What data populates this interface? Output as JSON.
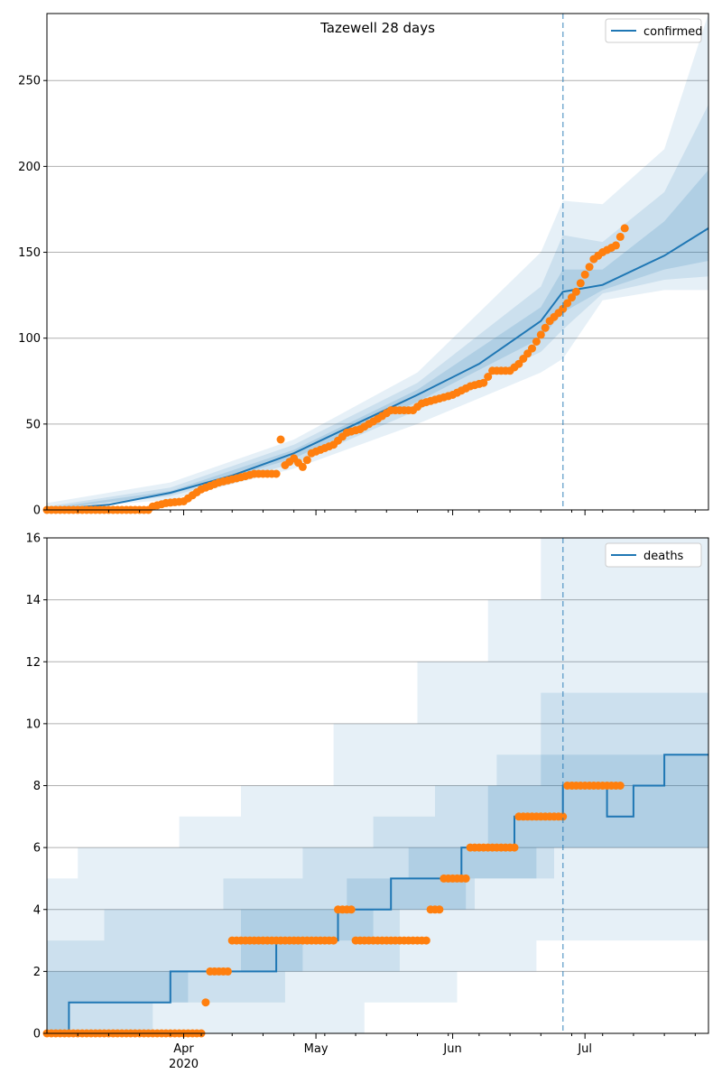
{
  "chart_data": [
    {
      "type": "line",
      "title": "Tazewell 28 days",
      "xlabel": "",
      "ylabel": "",
      "ylim": [
        0,
        289
      ],
      "yticks": [
        0,
        50,
        100,
        150,
        200,
        250
      ],
      "x_axis": {
        "type": "date",
        "start": "2020-03-01",
        "end": "2020-07-29",
        "major_ticks": [
          {
            "date": "2020-04-01",
            "label": "Apr",
            "sublabel": "2020"
          },
          {
            "date": "2020-05-01",
            "label": "May",
            "sublabel": ""
          },
          {
            "date": "2020-06-01",
            "label": "Jun",
            "sublabel": ""
          },
          {
            "date": "2020-07-01",
            "label": "Jul",
            "sublabel": ""
          }
        ]
      },
      "grid": "horizontal",
      "forecast_start": "2020-06-26",
      "legend": {
        "position": "top-right",
        "entries": [
          "confirmed"
        ]
      },
      "series": [
        {
          "name": "confirmed",
          "kind": "model-median",
          "color": "#1f77b4",
          "points": [
            [
              "2020-03-01",
              0
            ],
            [
              "2020-03-15",
              3
            ],
            [
              "2020-03-29",
              10
            ],
            [
              "2020-04-12",
              20
            ],
            [
              "2020-04-26",
              33
            ],
            [
              "2020-05-10",
              50
            ],
            [
              "2020-05-24",
              67
            ],
            [
              "2020-06-07",
              85
            ],
            [
              "2020-06-21",
              110
            ],
            [
              "2020-06-26",
              127
            ],
            [
              "2020-07-05",
              131
            ],
            [
              "2020-07-19",
              148
            ],
            [
              "2020-07-29",
              164
            ]
          ]
        },
        {
          "name": "",
          "kind": "observed",
          "color": "#ff7f0e",
          "points": [
            [
              "2020-03-01",
              0
            ],
            [
              "2020-03-24",
              0
            ],
            [
              "2020-03-25",
              2
            ],
            [
              "2020-03-28",
              4
            ],
            [
              "2020-04-01",
              5
            ],
            [
              "2020-04-05",
              12
            ],
            [
              "2020-04-09",
              16
            ],
            [
              "2020-04-14",
              19
            ],
            [
              "2020-04-17",
              21
            ],
            [
              "2020-04-22",
              21
            ],
            [
              "2020-04-23",
              41
            ],
            [
              "2020-04-24",
              26
            ],
            [
              "2020-04-26",
              30
            ],
            [
              "2020-04-28",
              25
            ],
            [
              "2020-04-30",
              33
            ],
            [
              "2020-05-05",
              38
            ],
            [
              "2020-05-08",
              45
            ],
            [
              "2020-05-11",
              47
            ],
            [
              "2020-05-15",
              53
            ],
            [
              "2020-05-18",
              58
            ],
            [
              "2020-05-23",
              58
            ],
            [
              "2020-05-25",
              62
            ],
            [
              "2020-06-01",
              67
            ],
            [
              "2020-06-05",
              72
            ],
            [
              "2020-06-08",
              74
            ],
            [
              "2020-06-10",
              81
            ],
            [
              "2020-06-14",
              81
            ],
            [
              "2020-06-16",
              85
            ],
            [
              "2020-06-19",
              94
            ],
            [
              "2020-06-21",
              102
            ],
            [
              "2020-06-23",
              110
            ],
            [
              "2020-06-26",
              117
            ],
            [
              "2020-06-29",
              127
            ],
            [
              "2020-07-01",
              137
            ],
            [
              "2020-07-03",
              146
            ],
            [
              "2020-07-05",
              150
            ],
            [
              "2020-07-08",
              154
            ],
            [
              "2020-07-10",
              164
            ]
          ]
        }
      ],
      "bands": [
        {
          "level": "outer",
          "upper": [
            [
              "2020-03-01",
              4
            ],
            [
              "2020-03-29",
              16
            ],
            [
              "2020-04-26",
              41
            ],
            [
              "2020-05-24",
              80
            ],
            [
              "2020-06-21",
              150
            ],
            [
              "2020-06-26",
              180
            ],
            [
              "2020-07-05",
              178
            ],
            [
              "2020-07-19",
              210
            ],
            [
              "2020-07-29",
              289
            ]
          ],
          "lower": [
            [
              "2020-03-01",
              0
            ],
            [
              "2020-03-29",
              6
            ],
            [
              "2020-04-26",
              24
            ],
            [
              "2020-05-24",
              50
            ],
            [
              "2020-06-21",
              80
            ],
            [
              "2020-06-26",
              88
            ],
            [
              "2020-07-05",
              122
            ],
            [
              "2020-07-19",
              128
            ],
            [
              "2020-07-29",
              128
            ]
          ]
        },
        {
          "level": "middle",
          "upper": [
            [
              "2020-03-01",
              2
            ],
            [
              "2020-03-29",
              13
            ],
            [
              "2020-04-26",
              38
            ],
            [
              "2020-05-24",
              74
            ],
            [
              "2020-06-21",
              130
            ],
            [
              "2020-06-26",
              160
            ],
            [
              "2020-07-05",
              156
            ],
            [
              "2020-07-19",
              185
            ],
            [
              "2020-07-29",
              236
            ]
          ],
          "lower": [
            [
              "2020-03-01",
              0
            ],
            [
              "2020-03-29",
              8
            ],
            [
              "2020-04-26",
              27
            ],
            [
              "2020-05-24",
              58
            ],
            [
              "2020-06-21",
              92
            ],
            [
              "2020-06-26",
              105
            ],
            [
              "2020-07-05",
              126
            ],
            [
              "2020-07-19",
              134
            ],
            [
              "2020-07-29",
              136
            ]
          ]
        },
        {
          "level": "inner",
          "upper": [
            [
              "2020-03-01",
              1
            ],
            [
              "2020-03-29",
              11
            ],
            [
              "2020-04-26",
              35
            ],
            [
              "2020-05-24",
              70
            ],
            [
              "2020-06-21",
              118
            ],
            [
              "2020-06-26",
              140
            ],
            [
              "2020-07-05",
              140
            ],
            [
              "2020-07-19",
              168
            ],
            [
              "2020-07-29",
              198
            ]
          ],
          "lower": [
            [
              "2020-03-01",
              0
            ],
            [
              "2020-03-29",
              9
            ],
            [
              "2020-04-26",
              30
            ],
            [
              "2020-05-24",
              63
            ],
            [
              "2020-06-21",
              100
            ],
            [
              "2020-06-26",
              115
            ],
            [
              "2020-07-05",
              128
            ],
            [
              "2020-07-19",
              140
            ],
            [
              "2020-07-29",
              145
            ]
          ]
        }
      ]
    },
    {
      "type": "line",
      "title": "",
      "xlabel": "",
      "ylabel": "",
      "ylim": [
        0,
        16
      ],
      "yticks": [
        0,
        2,
        4,
        6,
        8,
        10,
        12,
        14,
        16
      ],
      "x_axis": {
        "type": "date",
        "start": "2020-03-01",
        "end": "2020-07-29",
        "major_ticks": [
          {
            "date": "2020-04-01",
            "label": "Apr",
            "sublabel": "2020"
          },
          {
            "date": "2020-05-01",
            "label": "May",
            "sublabel": ""
          },
          {
            "date": "2020-06-01",
            "label": "Jun",
            "sublabel": ""
          },
          {
            "date": "2020-07-01",
            "label": "Jul",
            "sublabel": ""
          }
        ]
      },
      "grid": "horizontal",
      "forecast_start": "2020-06-26",
      "legend": {
        "position": "top-right",
        "entries": [
          "deaths"
        ]
      },
      "series": [
        {
          "name": "deaths",
          "kind": "model-median-step",
          "color": "#1f77b4",
          "points": [
            [
              "2020-03-01",
              0
            ],
            [
              "2020-03-06",
              1
            ],
            [
              "2020-03-29",
              2
            ],
            [
              "2020-04-22",
              3
            ],
            [
              "2020-05-06",
              4
            ],
            [
              "2020-05-18",
              5
            ],
            [
              "2020-06-03",
              6
            ],
            [
              "2020-06-15",
              7
            ],
            [
              "2020-06-26",
              8
            ],
            [
              "2020-07-06",
              7
            ],
            [
              "2020-07-12",
              8
            ],
            [
              "2020-07-19",
              9
            ],
            [
              "2020-07-29",
              9
            ]
          ]
        },
        {
          "name": "",
          "kind": "observed",
          "color": "#ff7f0e",
          "points": [
            [
              "2020-03-01",
              0
            ],
            [
              "2020-04-05",
              0
            ],
            [
              "2020-04-06",
              1
            ],
            [
              "2020-04-07",
              2
            ],
            [
              "2020-04-12",
              3
            ],
            [
              "2020-05-06",
              4
            ],
            [
              "2020-05-10",
              3
            ],
            [
              "2020-05-27",
              4
            ],
            [
              "2020-05-30",
              5
            ],
            [
              "2020-06-05",
              6
            ],
            [
              "2020-06-16",
              7
            ],
            [
              "2020-06-27",
              8
            ],
            [
              "2020-07-09",
              8
            ]
          ]
        }
      ],
      "bands": [
        {
          "level": "outer",
          "upper": [
            [
              "2020-03-01",
              5
            ],
            [
              "2020-03-08",
              6
            ],
            [
              "2020-03-31",
              7
            ],
            [
              "2020-04-14",
              8
            ],
            [
              "2020-05-05",
              10
            ],
            [
              "2020-05-24",
              12
            ],
            [
              "2020-06-09",
              14
            ],
            [
              "2020-06-21",
              16
            ],
            [
              "2020-07-29",
              16
            ]
          ],
          "lower": [
            [
              "2020-03-01",
              0
            ],
            [
              "2020-04-20",
              0
            ],
            [
              "2020-05-12",
              1
            ],
            [
              "2020-06-02",
              2
            ],
            [
              "2020-06-20",
              3
            ],
            [
              "2020-07-29",
              6
            ]
          ]
        },
        {
          "level": "middle",
          "upper": [
            [
              "2020-03-01",
              3
            ],
            [
              "2020-03-14",
              4
            ],
            [
              "2020-04-10",
              5
            ],
            [
              "2020-04-28",
              6
            ],
            [
              "2020-05-14",
              7
            ],
            [
              "2020-05-28",
              8
            ],
            [
              "2020-06-11",
              9
            ],
            [
              "2020-06-21",
              11
            ],
            [
              "2020-07-29",
              15
            ]
          ],
          "lower": [
            [
              "2020-03-01",
              0
            ],
            [
              "2020-03-25",
              1
            ],
            [
              "2020-04-24",
              2
            ],
            [
              "2020-05-20",
              4
            ],
            [
              "2020-06-06",
              5
            ],
            [
              "2020-06-24",
              6
            ],
            [
              "2020-07-29",
              7
            ]
          ]
        },
        {
          "level": "inner",
          "upper": [
            [
              "2020-03-01",
              2
            ],
            [
              "2020-03-10",
              2
            ],
            [
              "2020-04-14",
              4
            ],
            [
              "2020-05-08",
              5
            ],
            [
              "2020-05-22",
              6
            ],
            [
              "2020-06-09",
              8
            ],
            [
              "2020-06-21",
              9
            ],
            [
              "2020-07-29",
              11
            ]
          ],
          "lower": [
            [
              "2020-03-01",
              0
            ],
            [
              "2020-03-06",
              1
            ],
            [
              "2020-04-02",
              2
            ],
            [
              "2020-04-28",
              3
            ],
            [
              "2020-05-14",
              4
            ],
            [
              "2020-06-04",
              5
            ],
            [
              "2020-06-20",
              6
            ],
            [
              "2020-07-29",
              7
            ]
          ]
        }
      ]
    }
  ]
}
